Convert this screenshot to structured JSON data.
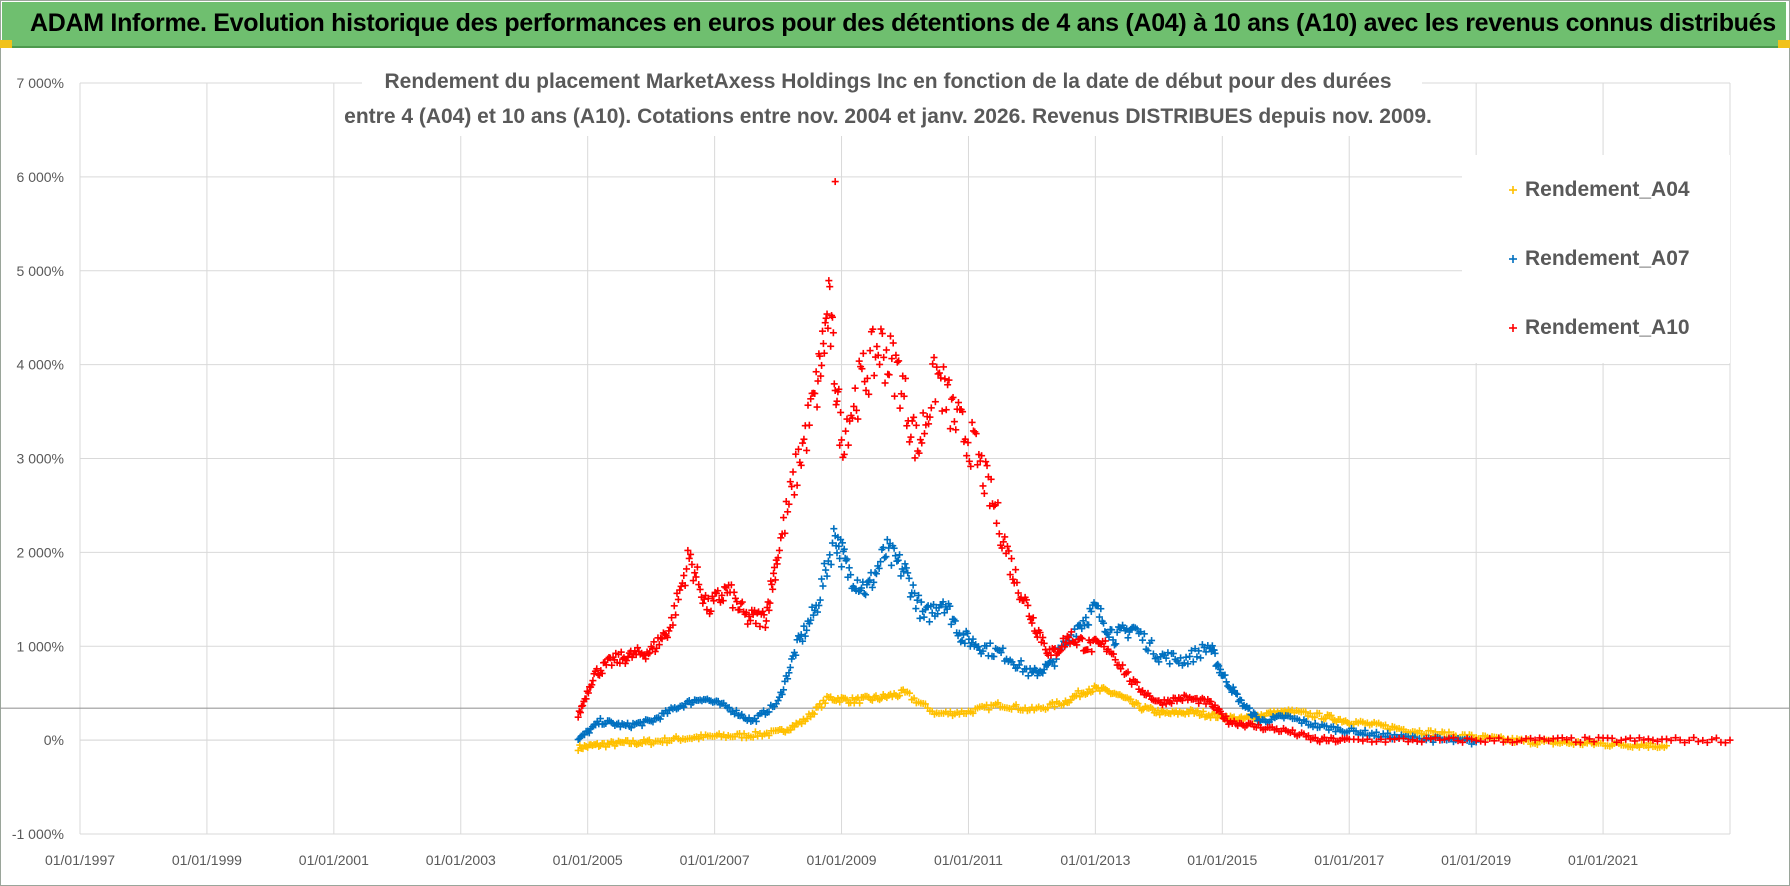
{
  "header": {
    "title": "ADAM Informe. Evolution historique des performances en euros pour des détentions de 4 ans (A04) à 10 ans (A10) avec les revenus connus distribués"
  },
  "chart_data": {
    "type": "scatter",
    "title_line1": "Rendement du placement MarketAxess Holdings Inc en fonction de la date de début pour des durées",
    "title_line2": "entre 4 (A04) et 10 ans (A10).  Cotations entre nov. 2004 et janv. 2026. Revenus DISTRIBUES  depuis nov. 2009.",
    "ylim": [
      -1000,
      7000
    ],
    "yticks": [
      -1000,
      0,
      1000,
      2000,
      3000,
      4000,
      5000,
      6000,
      7000
    ],
    "ytick_labels": [
      "-1 000%",
      "0%",
      "1 000%",
      "2 000%",
      "3 000%",
      "4 000%",
      "5 000%",
      "6 000%",
      "7 000%"
    ],
    "xlim": [
      1997.0,
      2023.0
    ],
    "xticks": [
      1997,
      1999,
      2001,
      2003,
      2005,
      2007,
      2009,
      2011,
      2013,
      2015,
      2017,
      2019,
      2021
    ],
    "xtick_labels": [
      "01/01/1997",
      "01/01/1999",
      "01/01/2001",
      "01/01/2003",
      "01/01/2005",
      "01/01/2007",
      "01/01/2009",
      "01/01/2011",
      "01/01/2013",
      "01/01/2015",
      "01/01/2017",
      "01/01/2019",
      "01/01/2021"
    ],
    "legend_position": "top-right",
    "series": [
      {
        "name": "Rendement_A04",
        "color": "#FFC000",
        "x": [
          2004.85,
          2005.2,
          2005.6,
          2006.0,
          2006.5,
          2007.0,
          2007.5,
          2008.0,
          2008.4,
          2008.8,
          2009.2,
          2009.6,
          2010.0,
          2010.5,
          2011.0,
          2011.5,
          2012.0,
          2012.5,
          2012.9,
          2013.3,
          2013.7,
          2014.1,
          2014.5,
          2014.9,
          2015.3,
          2015.7,
          2016.1,
          2016.6,
          2017.0,
          2017.5,
          2018.0,
          2018.5,
          2019.0,
          2019.5,
          2020.0,
          2020.5,
          2021.0,
          2021.5,
          2022.0
        ],
        "y": [
          -80,
          -50,
          -30,
          -20,
          20,
          40,
          50,
          80,
          200,
          450,
          420,
          450,
          500,
          280,
          300,
          380,
          320,
          400,
          550,
          500,
          350,
          280,
          300,
          260,
          220,
          280,
          300,
          250,
          200,
          150,
          100,
          60,
          30,
          0,
          -20,
          -30,
          -40,
          -50,
          -60
        ]
      },
      {
        "name": "Rendement_A07",
        "color": "#0070C0",
        "x": [
          2004.85,
          2005.2,
          2005.6,
          2006.0,
          2006.4,
          2006.8,
          2007.2,
          2007.6,
          2008.0,
          2008.3,
          2008.6,
          2008.9,
          2009.1,
          2009.4,
          2009.7,
          2010.0,
          2010.3,
          2010.6,
          2010.9,
          2011.2,
          2011.6,
          2012.0,
          2012.3,
          2012.7,
          2013.0,
          2013.3,
          2013.6,
          2014.0,
          2014.4,
          2014.8,
          2015.0,
          2015.3,
          2015.6,
          2016.0,
          2016.5,
          2017.0,
          2017.5,
          2018.0,
          2018.5,
          2019.0
        ],
        "y": [
          0,
          200,
          150,
          200,
          350,
          450,
          350,
          200,
          400,
          1000,
          1400,
          2200,
          1800,
          1600,
          2000,
          1800,
          1300,
          1500,
          1100,
          1000,
          900,
          700,
          800,
          1200,
          1400,
          1100,
          1200,
          900,
          850,
          1000,
          700,
          400,
          200,
          250,
          150,
          100,
          50,
          20,
          0,
          -20
        ]
      },
      {
        "name": "Rendement_A10",
        "color": "#FF0000",
        "x": [
          2004.85,
          2005.1,
          2005.4,
          2005.7,
          2006.0,
          2006.3,
          2006.6,
          2006.9,
          2007.2,
          2007.5,
          2007.8,
          2008.0,
          2008.3,
          2008.6,
          2008.8,
          2009.0,
          2009.3,
          2009.6,
          2009.9,
          2010.2,
          2010.5,
          2010.8,
          2011.1,
          2011.4,
          2011.7,
          2012.0,
          2012.3,
          2012.6,
          2012.9,
          2013.2,
          2013.6,
          2014.0,
          2014.4,
          2014.8,
          2015.1,
          2015.5,
          2016.0,
          2016.5,
          2017.0,
          2018.0,
          2019.0,
          2020.0,
          2021.0,
          2022.0,
          2023.0
        ],
        "y": [
          250,
          700,
          850,
          900,
          950,
          1200,
          1950,
          1400,
          1600,
          1300,
          1300,
          2000,
          2900,
          3700,
          4600,
          3200,
          3800,
          4200,
          3900,
          3100,
          3900,
          3400,
          3100,
          2500,
          1800,
          1300,
          900,
          1100,
          1000,
          1000,
          600,
          400,
          450,
          400,
          200,
          150,
          100,
          0,
          0,
          0,
          0,
          0,
          0,
          0,
          0
        ]
      }
    ],
    "outliers": [
      {
        "series": "Rendement_A10",
        "x": 2008.9,
        "y": 5950
      }
    ]
  }
}
